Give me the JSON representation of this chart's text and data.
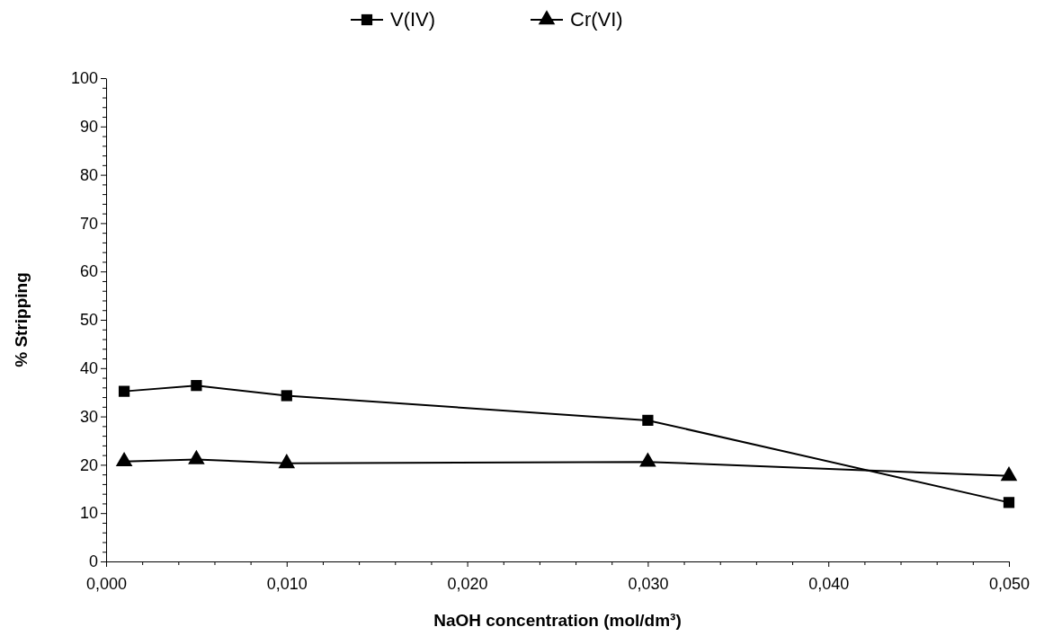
{
  "chart_data": {
    "type": "line",
    "xlabel": "NaOH concentration (mol/dm³)",
    "ylabel": "% Stripping",
    "legend": "top",
    "grid": false,
    "x": [
      0.001,
      0.005,
      0.01,
      0.03,
      0.05
    ],
    "xlim": [
      0,
      0.05
    ],
    "xticks": [
      {
        "value": 0,
        "label": "0,000"
      },
      {
        "value": 0.002,
        "label": null
      },
      {
        "value": 0.004,
        "label": null
      },
      {
        "value": 0.006,
        "label": null
      },
      {
        "value": 0.008,
        "label": null
      },
      {
        "value": 0.01,
        "label": "0,010"
      },
      {
        "value": 0.012,
        "label": null
      },
      {
        "value": 0.014,
        "label": null
      },
      {
        "value": 0.016,
        "label": null
      },
      {
        "value": 0.018,
        "label": null
      },
      {
        "value": 0.02,
        "label": "0,020"
      },
      {
        "value": 0.022,
        "label": null
      },
      {
        "value": 0.024,
        "label": null
      },
      {
        "value": 0.026,
        "label": null
      },
      {
        "value": 0.028,
        "label": null
      },
      {
        "value": 0.03,
        "label": "0,030"
      },
      {
        "value": 0.032,
        "label": null
      },
      {
        "value": 0.034,
        "label": null
      },
      {
        "value": 0.036,
        "label": null
      },
      {
        "value": 0.038,
        "label": null
      },
      {
        "value": 0.04,
        "label": "0,040"
      },
      {
        "value": 0.042,
        "label": null
      },
      {
        "value": 0.044,
        "label": null
      },
      {
        "value": 0.046,
        "label": null
      },
      {
        "value": 0.048,
        "label": null
      },
      {
        "value": 0.05,
        "label": "0,050"
      }
    ],
    "ylim": [
      0,
      100
    ],
    "yticks": [
      0,
      {
        "value": 2,
        "label": null
      },
      {
        "value": 4,
        "label": null
      },
      {
        "value": 6,
        "label": null
      },
      {
        "value": 8,
        "label": null
      },
      10,
      {
        "value": 12,
        "label": null
      },
      {
        "value": 14,
        "label": null
      },
      {
        "value": 16,
        "label": null
      },
      {
        "value": 18,
        "label": null
      },
      20,
      {
        "value": 22,
        "label": null
      },
      {
        "value": 24,
        "label": null
      },
      {
        "value": 26,
        "label": null
      },
      {
        "value": 28,
        "label": null
      },
      30,
      {
        "value": 32,
        "label": null
      },
      {
        "value": 34,
        "label": null
      },
      {
        "value": 36,
        "label": null
      },
      {
        "value": 38,
        "label": null
      },
      40,
      {
        "value": 42,
        "label": null
      },
      {
        "value": 44,
        "label": null
      },
      {
        "value": 46,
        "label": null
      },
      {
        "value": 48,
        "label": null
      },
      50,
      {
        "value": 52,
        "label": null
      },
      {
        "value": 54,
        "label": null
      },
      {
        "value": 56,
        "label": null
      },
      {
        "value": 58,
        "label": null
      },
      60,
      {
        "value": 62,
        "label": null
      },
      {
        "value": 64,
        "label": null
      },
      {
        "value": 66,
        "label": null
      },
      {
        "value": 68,
        "label": null
      },
      70,
      {
        "value": 72,
        "label": null
      },
      {
        "value": 74,
        "label": null
      },
      {
        "value": 76,
        "label": null
      },
      {
        "value": 78,
        "label": null
      },
      80,
      {
        "value": 82,
        "label": null
      },
      {
        "value": 84,
        "label": null
      },
      {
        "value": 86,
        "label": null
      },
      {
        "value": 88,
        "label": null
      },
      90,
      {
        "value": 92,
        "label": null
      },
      {
        "value": 94,
        "label": null
      },
      {
        "value": 96,
        "label": null
      },
      {
        "value": 98,
        "label": null
      },
      100
    ],
    "series": [
      {
        "name": "V(IV)",
        "color": "#000000",
        "marker": "square",
        "line_style": "solid",
        "values": [
          35.2,
          36.4,
          34.3,
          29.2,
          12.2
        ]
      },
      {
        "name": "Cr(VI)",
        "color": "#000000",
        "marker": "triangle",
        "line_style": "solid",
        "values": [
          20.7,
          21.1,
          20.3,
          20.6,
          17.7
        ]
      }
    ]
  }
}
